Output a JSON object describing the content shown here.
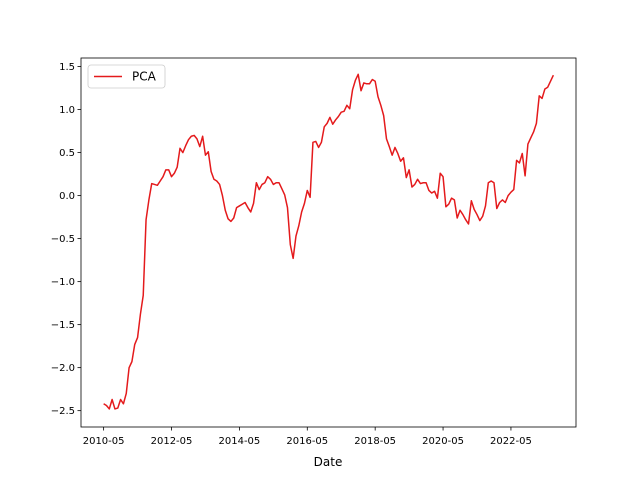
{
  "chart_data": {
    "type": "line",
    "xlabel": "Date",
    "legend": "upper left",
    "grid": false,
    "x": [
      "2010-05",
      "2010-06",
      "2010-07",
      "2010-08",
      "2010-09",
      "2010-10",
      "2010-11",
      "2010-12",
      "2011-01",
      "2011-02",
      "2011-03",
      "2011-04",
      "2011-05",
      "2011-06",
      "2011-07",
      "2011-08",
      "2011-09",
      "2011-10",
      "2011-11",
      "2011-12",
      "2012-01",
      "2012-02",
      "2012-03",
      "2012-04",
      "2012-05",
      "2012-06",
      "2012-07",
      "2012-08",
      "2012-09",
      "2012-10",
      "2012-11",
      "2012-12",
      "2013-01",
      "2013-02",
      "2013-03",
      "2013-04",
      "2013-05",
      "2013-06",
      "2013-07",
      "2013-08",
      "2013-09",
      "2013-10",
      "2013-11",
      "2013-12",
      "2014-01",
      "2014-02",
      "2014-03",
      "2014-04",
      "2014-05",
      "2014-06",
      "2014-07",
      "2014-08",
      "2014-09",
      "2014-10",
      "2014-11",
      "2014-12",
      "2015-01",
      "2015-02",
      "2015-03",
      "2015-04",
      "2015-05",
      "2015-06",
      "2015-07",
      "2015-08",
      "2015-09",
      "2015-10",
      "2015-11",
      "2015-12",
      "2016-01",
      "2016-02",
      "2016-03",
      "2016-04",
      "2016-05",
      "2016-06",
      "2016-07",
      "2016-08",
      "2016-09",
      "2016-10",
      "2016-11",
      "2016-12",
      "2017-01",
      "2017-02",
      "2017-03",
      "2017-04",
      "2017-05",
      "2017-06",
      "2017-07",
      "2017-08",
      "2017-09",
      "2017-10",
      "2017-11",
      "2017-12",
      "2018-01",
      "2018-02",
      "2018-03",
      "2018-04",
      "2018-05",
      "2018-06",
      "2018-07",
      "2018-08",
      "2018-09",
      "2018-10",
      "2018-11",
      "2018-12",
      "2019-01",
      "2019-02",
      "2019-03",
      "2019-04",
      "2019-05",
      "2019-06",
      "2019-07",
      "2019-08",
      "2019-09",
      "2019-10",
      "2019-11",
      "2019-12",
      "2020-01",
      "2020-02",
      "2020-03",
      "2020-04",
      "2020-05",
      "2020-06",
      "2020-07",
      "2020-08",
      "2020-09",
      "2020-10",
      "2020-11",
      "2020-12",
      "2021-01",
      "2021-02",
      "2021-03",
      "2021-04",
      "2021-05",
      "2021-06",
      "2021-07",
      "2021-08",
      "2021-09",
      "2021-10",
      "2021-11",
      "2021-12",
      "2022-01",
      "2022-02",
      "2022-03",
      "2022-04",
      "2022-05",
      "2022-06",
      "2022-07",
      "2022-08",
      "2022-09",
      "2022-10",
      "2022-11",
      "2022-12",
      "2023-01",
      "2023-02",
      "2023-03",
      "2023-04",
      "2023-05",
      "2023-06",
      "2023-07",
      "2023-08"
    ],
    "series": [
      {
        "name": "PCA",
        "color": "#e41a1c",
        "values": [
          -2.42,
          -2.44,
          -2.48,
          -2.37,
          -2.48,
          -2.47,
          -2.37,
          -2.42,
          -2.3,
          -2.0,
          -1.93,
          -1.73,
          -1.65,
          -1.38,
          -1.16,
          -0.28,
          -0.05,
          0.14,
          0.13,
          0.12,
          0.17,
          0.22,
          0.3,
          0.3,
          0.22,
          0.26,
          0.33,
          0.55,
          0.5,
          0.58,
          0.65,
          0.69,
          0.7,
          0.66,
          0.57,
          0.69,
          0.47,
          0.51,
          0.28,
          0.19,
          0.17,
          0.13,
          0.0,
          -0.17,
          -0.27,
          -0.3,
          -0.26,
          -0.14,
          -0.12,
          -0.1,
          -0.08,
          -0.14,
          -0.19,
          -0.09,
          0.15,
          0.07,
          0.13,
          0.15,
          0.22,
          0.19,
          0.13,
          0.15,
          0.15,
          0.08,
          0.01,
          -0.14,
          -0.57,
          -0.73,
          -0.47,
          -0.35,
          -0.19,
          -0.09,
          0.06,
          -0.02,
          0.62,
          0.63,
          0.56,
          0.62,
          0.8,
          0.84,
          0.91,
          0.83,
          0.88,
          0.92,
          0.97,
          0.98,
          1.05,
          1.01,
          1.23,
          1.34,
          1.41,
          1.22,
          1.31,
          1.3,
          1.3,
          1.35,
          1.33,
          1.15,
          1.05,
          0.93,
          0.66,
          0.57,
          0.47,
          0.56,
          0.49,
          0.4,
          0.44,
          0.21,
          0.3,
          0.1,
          0.13,
          0.19,
          0.14,
          0.15,
          0.15,
          0.06,
          0.03,
          0.05,
          -0.03,
          0.26,
          0.22,
          -0.13,
          -0.1,
          -0.03,
          -0.05,
          -0.26,
          -0.17,
          -0.22,
          -0.28,
          -0.33,
          -0.06,
          -0.16,
          -0.22,
          -0.29,
          -0.24,
          -0.12,
          0.15,
          0.17,
          0.15,
          -0.15,
          -0.08,
          -0.05,
          -0.08,
          0.0,
          0.04,
          0.07,
          0.41,
          0.38,
          0.49,
          0.23,
          0.6,
          0.67,
          0.74,
          0.84,
          1.16,
          1.13,
          1.24,
          1.26,
          1.33,
          1.4
        ]
      }
    ],
    "xlim": [
      "2009-09",
      "2024-04"
    ],
    "xticks": [
      "2010-05",
      "2012-05",
      "2014-05",
      "2016-05",
      "2018-05",
      "2020-05",
      "2022-05"
    ],
    "ylim": [
      -2.69,
      1.6
    ],
    "yticks": [
      {
        "value": -2.5,
        "label": "−2.5"
      },
      {
        "value": -2.0,
        "label": "−2.0"
      },
      {
        "value": -1.5,
        "label": "−1.5"
      },
      {
        "value": -1.0,
        "label": "−1.0"
      },
      {
        "value": -0.5,
        "label": "−0.5"
      },
      {
        "value": 0.0,
        "label": "0.0"
      },
      {
        "value": 0.5,
        "label": "0.5"
      },
      {
        "value": 1.0,
        "label": "1.0"
      },
      {
        "value": 1.5,
        "label": "1.5"
      }
    ]
  }
}
